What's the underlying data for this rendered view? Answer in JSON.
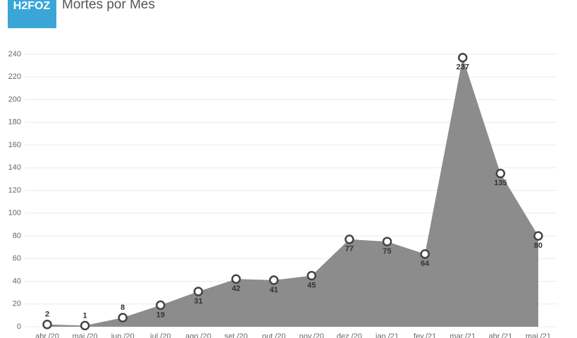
{
  "logo": "H2FOZ",
  "chart_data": {
    "type": "area",
    "title": "Mortes por Mes",
    "categories": [
      "abr./20",
      "mai./20",
      "jun./20",
      "jul./20",
      "ago./20",
      "set./20",
      "out./20",
      "nov./20",
      "dez./20",
      "jan./21",
      "fev./21",
      "mar./21",
      "abr./21",
      "mai./21"
    ],
    "values": [
      2,
      1,
      8,
      19,
      31,
      42,
      41,
      45,
      77,
      75,
      64,
      237,
      135,
      80
    ],
    "color": "#8c8c8c",
    "ylim": [
      0,
      240
    ],
    "yticks": [
      0,
      20,
      40,
      60,
      80,
      100,
      120,
      140,
      160,
      180,
      200,
      220,
      240
    ],
    "grid": true
  }
}
